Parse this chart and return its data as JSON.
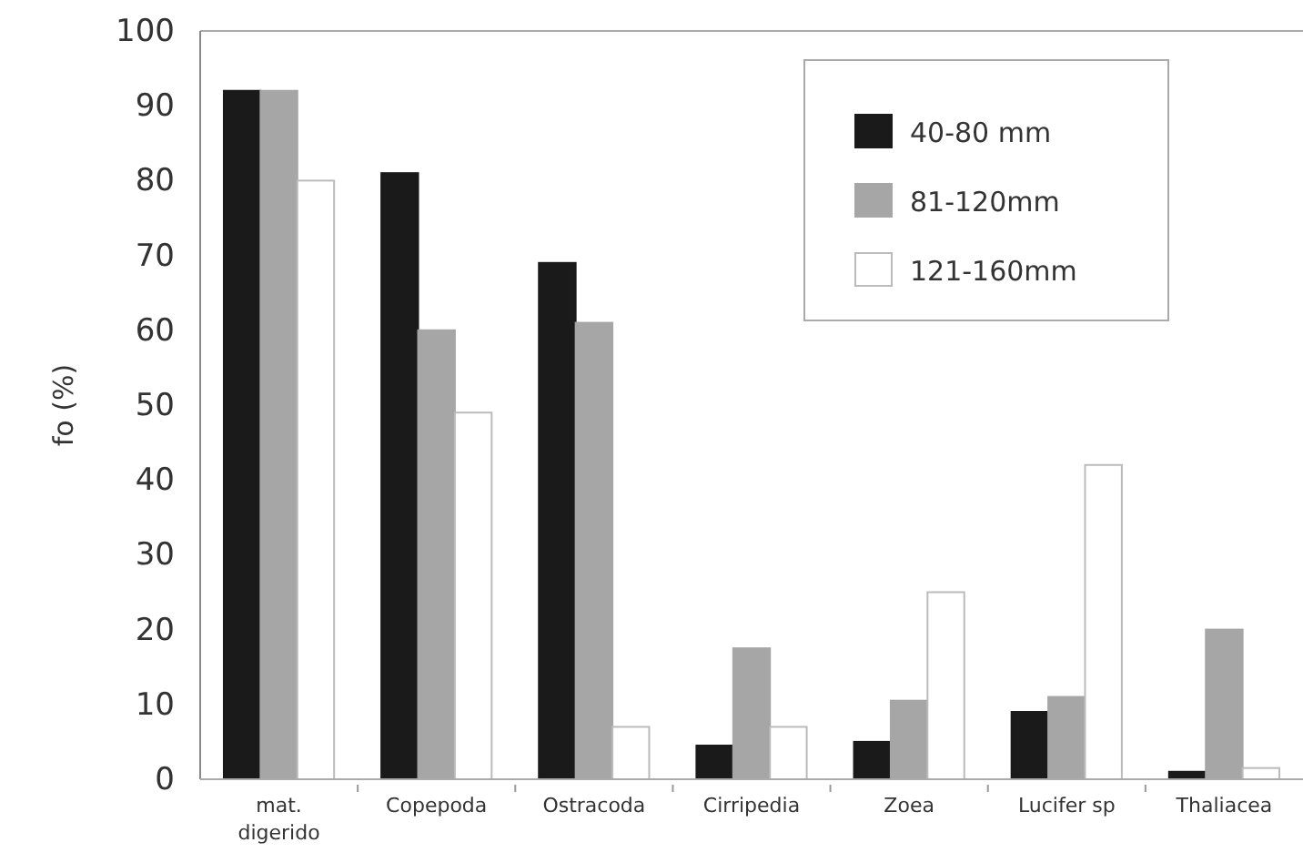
{
  "chart_data": {
    "type": "bar",
    "ylabel": "fo (%)",
    "categories": [
      "mat.\ndigerido",
      "Copepoda",
      "Ostracoda",
      "Cirripedia",
      "Zoea",
      "Lucifer sp",
      "Thaliacea"
    ],
    "series": [
      {
        "name": "40-80 mm",
        "color": "#1a1a1a",
        "values": [
          92,
          81,
          69,
          4.5,
          5,
          9,
          1
        ]
      },
      {
        "name": "81-120mm",
        "color": "#a6a6a6",
        "values": [
          92,
          60,
          61,
          17.5,
          10.5,
          11,
          20
        ]
      },
      {
        "name": "121-160mm",
        "color": "#ffffff",
        "values": [
          80,
          49,
          7,
          7,
          25,
          42,
          1.5
        ]
      }
    ],
    "ylim": [
      0,
      100
    ],
    "yticks": [
      0,
      10,
      20,
      30,
      40,
      50,
      60,
      70,
      80,
      90,
      100
    ],
    "grid": false,
    "legend": "top right"
  }
}
